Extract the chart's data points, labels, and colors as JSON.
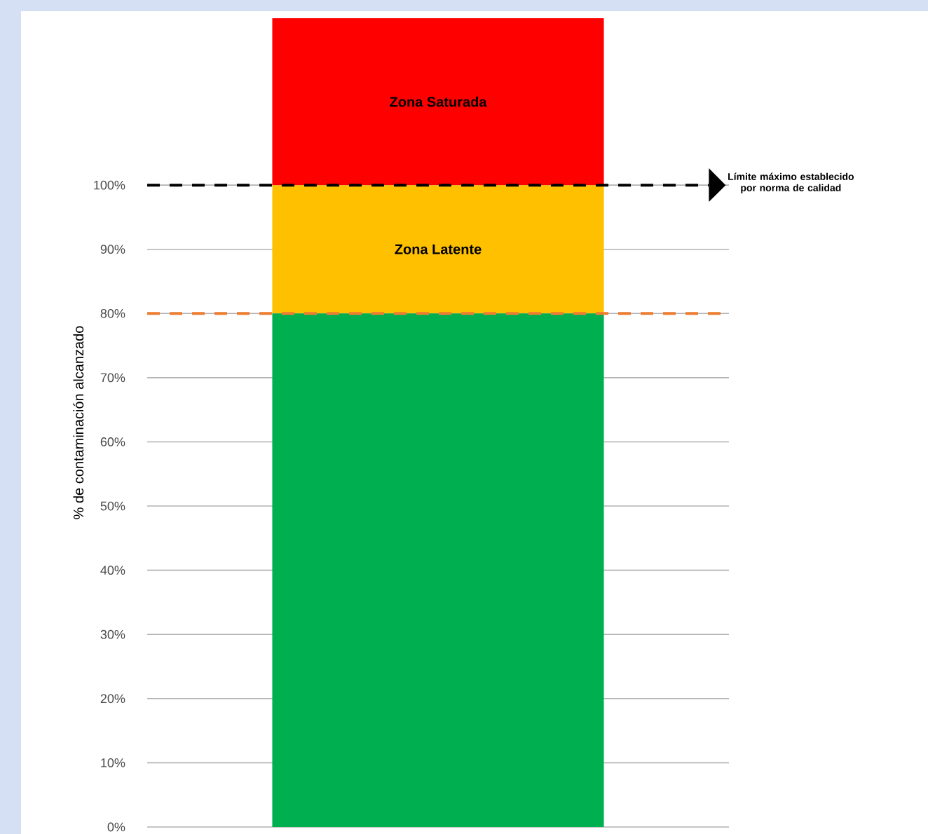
{
  "chart_data": {
    "type": "bar",
    "stacked": true,
    "categories": [
      null
    ],
    "series": [
      {
        "color": "#00b050",
        "values": [
          80
        ]
      },
      {
        "color": "#ffc000",
        "values": [
          20
        ]
      },
      {
        "color": "#ff0000",
        "values": [
          26
        ]
      }
    ],
    "ylabel": "% de contaminación alcanzado",
    "ylim": [
      0,
      126
    ],
    "yticks": [
      {
        "value": 0,
        "label": "0%"
      },
      {
        "value": 10,
        "label": "10%"
      },
      {
        "value": 20,
        "label": "20%"
      },
      {
        "value": 30,
        "label": "30%"
      },
      {
        "value": 40,
        "label": "40%"
      },
      {
        "value": 50,
        "label": "50%"
      },
      {
        "value": 60,
        "label": "60%"
      },
      {
        "value": 70,
        "label": "70%"
      },
      {
        "value": 80,
        "label": "80%"
      },
      {
        "value": 90,
        "label": "90%"
      },
      {
        "value": 100,
        "label": "100%"
      }
    ],
    "grid": "y",
    "tick_labels": "y",
    "ref_lines": [
      {
        "axis": "y",
        "value": 100,
        "label": "Límite máximo establecido por norma de calidad",
        "color": "#000000",
        "line_style": "dashed"
      },
      {
        "axis": "y",
        "value": 80,
        "color": "#ed7d31",
        "line_style": "dashed"
      }
    ],
    "annotations": [
      "Zona Saturada",
      "Zona Latente"
    ]
  }
}
